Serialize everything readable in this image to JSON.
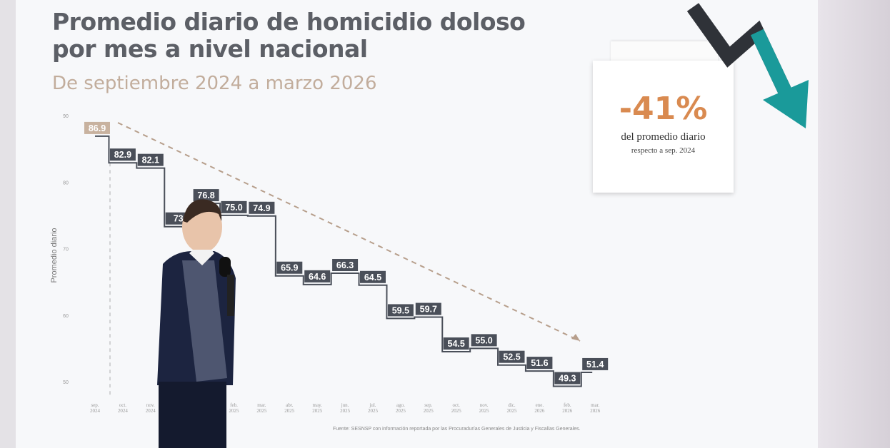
{
  "title_line1": "Promedio diario de homicidio doloso",
  "title_line2": "por mes a nivel nacional",
  "subtitle": "De septiembre 2024 a marzo 2026",
  "callout": {
    "value": "-41%",
    "line1": "del promedio diario",
    "line2": "respecto a sep. 2024"
  },
  "source": "Fuente: SESNSP con información reportada por las Procuradurías Generales de Justicia y Fiscalías Generales.",
  "colors": {
    "label_box": "#4a4f59",
    "first_label_box": "#c8b29f",
    "trend_line": "#b79f8c",
    "accent": "#d98a50",
    "arrow_teal": "#1a9a9a",
    "arrow_dark": "#2f3238"
  },
  "chart_data": {
    "type": "step-line",
    "ylabel": "Promedio diario",
    "ylim": [
      50,
      90
    ],
    "yticks": [
      "90",
      "80",
      "70",
      "60",
      "50"
    ],
    "categories": [
      [
        "sep.",
        "2024"
      ],
      [
        "oct.",
        "2024"
      ],
      [
        "nov.",
        "2024"
      ],
      [
        "dic.",
        "2024"
      ],
      [
        "ene.",
        "2025"
      ],
      [
        "feb.",
        "2025"
      ],
      [
        "mar.",
        "2025"
      ],
      [
        "abr.",
        "2025"
      ],
      [
        "may.",
        "2025"
      ],
      [
        "jun.",
        "2025"
      ],
      [
        "jul.",
        "2025"
      ],
      [
        "ago.",
        "2025"
      ],
      [
        "sep.",
        "2025"
      ],
      [
        "oct.",
        "2025"
      ],
      [
        "nov.",
        "2025"
      ],
      [
        "dic.",
        "2025"
      ],
      [
        "ene.",
        "2026"
      ],
      [
        "feb.",
        "2026"
      ],
      [
        "mar.",
        "2026"
      ]
    ],
    "values": [
      86.9,
      82.9,
      82.1,
      73.3,
      76.8,
      75.0,
      74.9,
      65.9,
      64.6,
      66.3,
      64.5,
      59.5,
      59.7,
      54.5,
      55.0,
      52.5,
      51.6,
      49.3,
      51.4
    ],
    "labels": [
      "86.9",
      "82.9",
      "82.1",
      "73",
      "76.8",
      "75.0",
      "74.9",
      "65.9",
      "64.6",
      "66.3",
      "64.5",
      "59.5",
      "59.7",
      "54.5",
      "55.0",
      "52.5",
      "51.6",
      "49.3",
      "51.4"
    ],
    "trend": "dashed downward line from sep. 2024 to mar. 2026",
    "grid": false
  }
}
